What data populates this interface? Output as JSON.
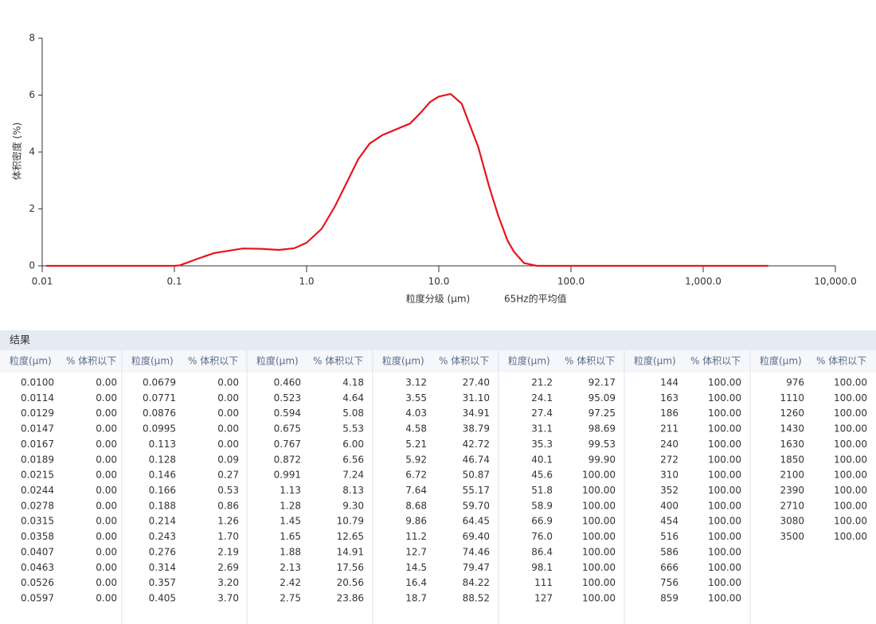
{
  "chart_data": {
    "type": "line",
    "x_label": "粒度分级 (μm)",
    "note": "65Hz的平均值",
    "y_label": "体积密度 (%)",
    "log_x": true,
    "xlim": [
      0.01,
      10000
    ],
    "ylim": [
      0,
      8
    ],
    "xticks": [
      0.01,
      0.1,
      {
        "value": 1,
        "label": "1.0"
      },
      {
        "value": 10,
        "label": "10.0"
      },
      {
        "value": 100,
        "label": "100.0"
      },
      {
        "value": 1000,
        "label": "1,000.0"
      },
      {
        "value": 10000,
        "label": "10,000.0"
      }
    ],
    "yticks": [
      0,
      2,
      4,
      6,
      8
    ],
    "series": [
      {
        "name": "65Hz的平均值",
        "color": "#e8141c",
        "x": [
          0.0107,
          0.1,
          0.11,
          0.15,
          0.2,
          0.33,
          0.45,
          0.62,
          0.81,
          1.0,
          1.3,
          1.63,
          2.0,
          2.46,
          3.0,
          3.73,
          4.5,
          6.05,
          7.2,
          8.6,
          10,
          12.3,
          14.9,
          17,
          19.9,
          24,
          28,
          33,
          37,
          44,
          55,
          100,
          1000,
          3100
        ],
        "values": [
          0,
          0,
          0.02,
          0.25,
          0.45,
          0.61,
          0.6,
          0.56,
          0.62,
          0.81,
          1.3,
          2.07,
          2.9,
          3.75,
          4.3,
          4.59,
          4.75,
          5.0,
          5.35,
          5.76,
          5.95,
          6.04,
          5.7,
          5.0,
          4.17,
          2.8,
          1.8,
          0.9,
          0.5,
          0.1,
          0,
          0,
          0,
          0
        ]
      }
    ]
  },
  "table": {
    "title": "结果",
    "groups": [
      {
        "headers": [
          "粒度(μm)",
          "% 体积以下"
        ],
        "rows": [
          [
            "0.0100",
            "0.00"
          ],
          [
            "0.0114",
            "0.00"
          ],
          [
            "0.0129",
            "0.00"
          ],
          [
            "0.0147",
            "0.00"
          ],
          [
            "0.0167",
            "0.00"
          ],
          [
            "0.0189",
            "0.00"
          ],
          [
            "0.0215",
            "0.00"
          ],
          [
            "0.0244",
            "0.00"
          ],
          [
            "0.0278",
            "0.00"
          ],
          [
            "0.0315",
            "0.00"
          ],
          [
            "0.0358",
            "0.00"
          ],
          [
            "0.0407",
            "0.00"
          ],
          [
            "0.0463",
            "0.00"
          ],
          [
            "0.0526",
            "0.00"
          ],
          [
            "0.0597",
            "0.00"
          ]
        ]
      },
      {
        "headers": [
          "粒度(μm)",
          "% 体积以下"
        ],
        "rows": [
          [
            "0.0679",
            "0.00"
          ],
          [
            "0.0771",
            "0.00"
          ],
          [
            "0.0876",
            "0.00"
          ],
          [
            "0.0995",
            "0.00"
          ],
          [
            "0.113",
            "0.00"
          ],
          [
            "0.128",
            "0.09"
          ],
          [
            "0.146",
            "0.27"
          ],
          [
            "0.166",
            "0.53"
          ],
          [
            "0.188",
            "0.86"
          ],
          [
            "0.214",
            "1.26"
          ],
          [
            "0.243",
            "1.70"
          ],
          [
            "0.276",
            "2.19"
          ],
          [
            "0.314",
            "2.69"
          ],
          [
            "0.357",
            "3.20"
          ],
          [
            "0.405",
            "3.70"
          ]
        ]
      },
      {
        "headers": [
          "粒度(μm)",
          "% 体积以下"
        ],
        "rows": [
          [
            "0.460",
            "4.18"
          ],
          [
            "0.523",
            "4.64"
          ],
          [
            "0.594",
            "5.08"
          ],
          [
            "0.675",
            "5.53"
          ],
          [
            "0.767",
            "6.00"
          ],
          [
            "0.872",
            "6.56"
          ],
          [
            "0.991",
            "7.24"
          ],
          [
            "1.13",
            "8.13"
          ],
          [
            "1.28",
            "9.30"
          ],
          [
            "1.45",
            "10.79"
          ],
          [
            "1.65",
            "12.65"
          ],
          [
            "1.88",
            "14.91"
          ],
          [
            "2.13",
            "17.56"
          ],
          [
            "2.42",
            "20.56"
          ],
          [
            "2.75",
            "23.86"
          ]
        ]
      },
      {
        "headers": [
          "粒度(μm)",
          "% 体积以下"
        ],
        "rows": [
          [
            "3.12",
            "27.40"
          ],
          [
            "3.55",
            "31.10"
          ],
          [
            "4.03",
            "34.91"
          ],
          [
            "4.58",
            "38.79"
          ],
          [
            "5.21",
            "42.72"
          ],
          [
            "5.92",
            "46.74"
          ],
          [
            "6.72",
            "50.87"
          ],
          [
            "7.64",
            "55.17"
          ],
          [
            "8.68",
            "59.70"
          ],
          [
            "9.86",
            "64.45"
          ],
          [
            "11.2",
            "69.40"
          ],
          [
            "12.7",
            "74.46"
          ],
          [
            "14.5",
            "79.47"
          ],
          [
            "16.4",
            "84.22"
          ],
          [
            "18.7",
            "88.52"
          ]
        ]
      },
      {
        "headers": [
          "粒度(μm)",
          "% 体积以下"
        ],
        "rows": [
          [
            "21.2",
            "92.17"
          ],
          [
            "24.1",
            "95.09"
          ],
          [
            "27.4",
            "97.25"
          ],
          [
            "31.1",
            "98.69"
          ],
          [
            "35.3",
            "99.53"
          ],
          [
            "40.1",
            "99.90"
          ],
          [
            "45.6",
            "100.00"
          ],
          [
            "51.8",
            "100.00"
          ],
          [
            "58.9",
            "100.00"
          ],
          [
            "66.9",
            "100.00"
          ],
          [
            "76.0",
            "100.00"
          ],
          [
            "86.4",
            "100.00"
          ],
          [
            "98.1",
            "100.00"
          ],
          [
            "111",
            "100.00"
          ],
          [
            "127",
            "100.00"
          ]
        ]
      },
      {
        "headers": [
          "粒度(μm)",
          "% 体积以下"
        ],
        "rows": [
          [
            "144",
            "100.00"
          ],
          [
            "163",
            "100.00"
          ],
          [
            "186",
            "100.00"
          ],
          [
            "211",
            "100.00"
          ],
          [
            "240",
            "100.00"
          ],
          [
            "272",
            "100.00"
          ],
          [
            "310",
            "100.00"
          ],
          [
            "352",
            "100.00"
          ],
          [
            "400",
            "100.00"
          ],
          [
            "454",
            "100.00"
          ],
          [
            "516",
            "100.00"
          ],
          [
            "586",
            "100.00"
          ],
          [
            "666",
            "100.00"
          ],
          [
            "756",
            "100.00"
          ],
          [
            "859",
            "100.00"
          ]
        ]
      },
      {
        "headers": [
          "粒度(μm)",
          "% 体积以下"
        ],
        "rows": [
          [
            "976",
            "100.00"
          ],
          [
            "1110",
            "100.00"
          ],
          [
            "1260",
            "100.00"
          ],
          [
            "1430",
            "100.00"
          ],
          [
            "1630",
            "100.00"
          ],
          [
            "1850",
            "100.00"
          ],
          [
            "2100",
            "100.00"
          ],
          [
            "2390",
            "100.00"
          ],
          [
            "2710",
            "100.00"
          ],
          [
            "3080",
            "100.00"
          ],
          [
            "3500",
            "100.00"
          ]
        ]
      }
    ]
  }
}
